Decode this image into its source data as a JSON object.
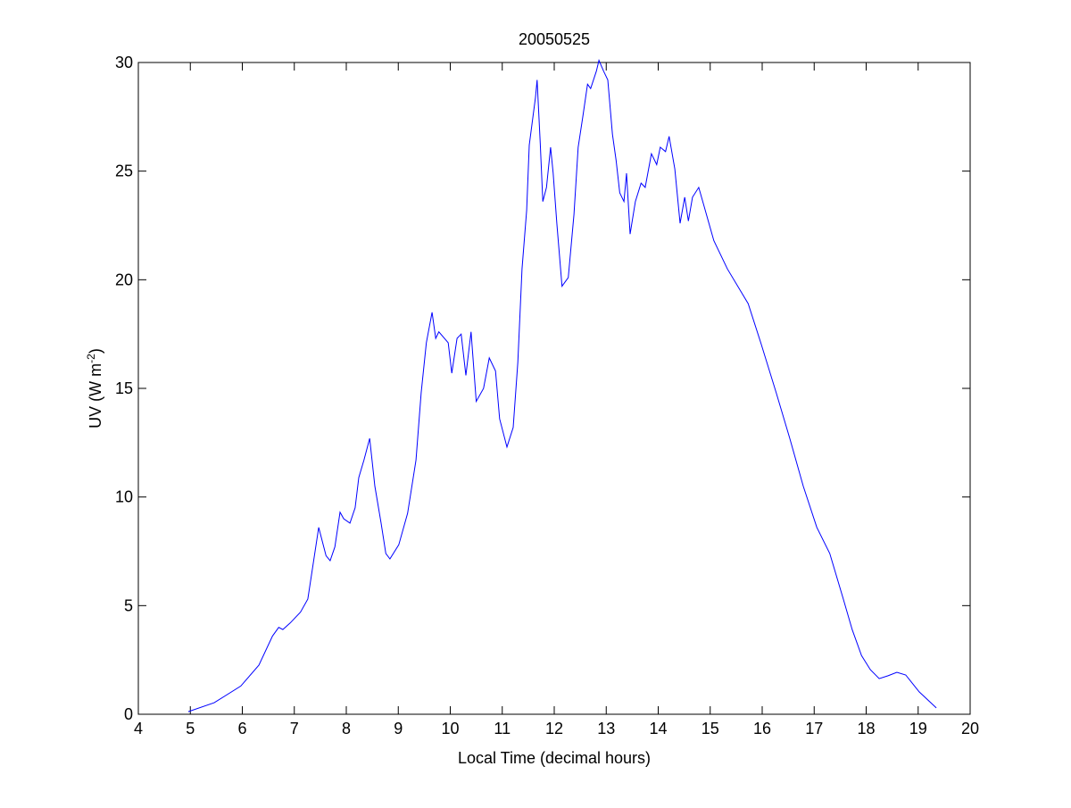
{
  "chart_data": {
    "type": "line",
    "title": "20050525",
    "xlabel": "Local Time (decimal hours)",
    "ylabel_main": "UV (W m",
    "ylabel_sup": "-2",
    "ylabel_close": ")",
    "xlim": [
      4,
      20
    ],
    "ylim": [
      0,
      30
    ],
    "xticks": [
      4,
      5,
      6,
      7,
      8,
      9,
      10,
      11,
      12,
      13,
      14,
      15,
      16,
      17,
      18,
      19,
      20
    ],
    "yticks": [
      0,
      5,
      10,
      15,
      20,
      25,
      30
    ],
    "grid": false,
    "line_color": "#0000ff",
    "series": [
      {
        "x": [
          4.96,
          5.46,
          5.97,
          6.32,
          6.58,
          6.7,
          6.78,
          6.92,
          7.12,
          7.26,
          7.47,
          7.61,
          7.69,
          7.78,
          7.88,
          7.95,
          8.07,
          8.17,
          8.24,
          8.34,
          8.45,
          8.55,
          8.67,
          8.76,
          8.84,
          9.01,
          9.18,
          9.34,
          9.44,
          9.54,
          9.65,
          9.72,
          9.78,
          9.96,
          10.03,
          10.13,
          10.21,
          10.3,
          10.4,
          10.5,
          10.64,
          10.75,
          10.87,
          10.95,
          11.09,
          11.21,
          11.3,
          11.38,
          11.47,
          11.52,
          11.64,
          11.67,
          11.73,
          11.78,
          11.85,
          11.93,
          11.98,
          12.05,
          12.15,
          12.27,
          12.38,
          12.46,
          12.55,
          12.64,
          12.7,
          12.81,
          12.86,
          12.95,
          13.03,
          13.12,
          13.19,
          13.26,
          13.34,
          13.39,
          13.46,
          13.56,
          13.67,
          13.75,
          13.87,
          13.97,
          14.04,
          14.14,
          14.21,
          14.32,
          14.42,
          14.51,
          14.58,
          14.66,
          14.78,
          14.88,
          15.07,
          15.33,
          15.73,
          15.98,
          16.27,
          16.53,
          16.79,
          17.05,
          17.3,
          17.56,
          17.73,
          17.91,
          18.08,
          18.25,
          18.42,
          18.59,
          18.76,
          19.02,
          19.35
        ],
        "y": [
          0.12,
          0.53,
          1.3,
          2.26,
          3.6,
          4.0,
          3.9,
          4.2,
          4.7,
          5.3,
          8.6,
          7.3,
          7.07,
          7.7,
          9.3,
          9.0,
          8.8,
          9.5,
          10.9,
          11.7,
          12.7,
          10.5,
          8.8,
          7.4,
          7.15,
          7.8,
          9.25,
          11.7,
          14.8,
          17.1,
          18.5,
          17.3,
          17.6,
          17.1,
          15.7,
          17.3,
          17.5,
          15.6,
          17.6,
          14.4,
          15.0,
          16.4,
          15.8,
          13.6,
          12.3,
          13.2,
          16.2,
          20.5,
          23.2,
          26.2,
          28.4,
          29.2,
          26.3,
          23.6,
          24.25,
          26.1,
          24.9,
          22.6,
          19.7,
          20.1,
          23.0,
          26.1,
          27.5,
          29.0,
          28.8,
          29.6,
          30.1,
          29.6,
          29.2,
          26.7,
          25.5,
          24.0,
          23.6,
          24.9,
          22.1,
          23.6,
          24.45,
          24.25,
          25.8,
          25.3,
          26.1,
          25.9,
          26.6,
          25.1,
          22.6,
          23.8,
          22.7,
          23.8,
          24.25,
          23.4,
          21.8,
          20.5,
          18.9,
          17.05,
          14.8,
          12.7,
          10.5,
          8.6,
          7.4,
          5.3,
          3.9,
          2.7,
          2.05,
          1.64,
          1.77,
          1.93,
          1.81,
          1.03,
          0.29
        ]
      }
    ]
  }
}
